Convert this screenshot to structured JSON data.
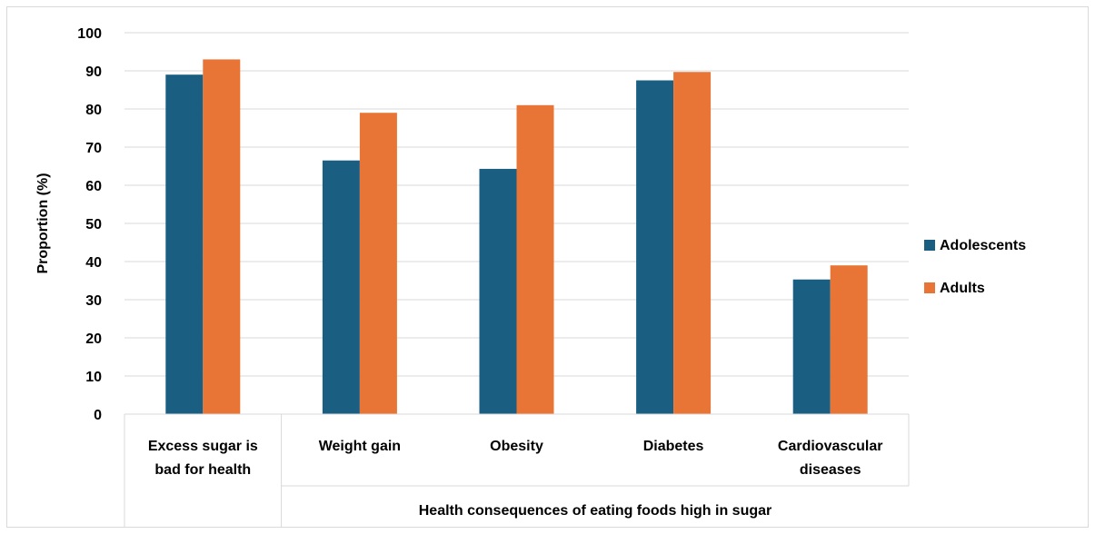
{
  "chart_data": {
    "type": "bar",
    "title": "",
    "ylabel": "Proportion (%)",
    "xlabel": "Health consequences of eating foods high in sugar",
    "ylim": [
      0,
      100
    ],
    "yticks": [
      0,
      10,
      20,
      30,
      40,
      50,
      60,
      70,
      80,
      90,
      100
    ],
    "grid": true,
    "legend_position": "right",
    "categories": [
      [
        "Excess sugar is",
        "bad for health"
      ],
      [
        "Weight gain"
      ],
      [
        "Obesity"
      ],
      [
        "Diabetes"
      ],
      [
        "Cardiovascular",
        "diseases"
      ]
    ],
    "series": [
      {
        "name": "Adolescents",
        "color": "#1a5e82",
        "values": [
          89,
          66.5,
          64.3,
          87.5,
          35.3
        ]
      },
      {
        "name": "Adults",
        "color": "#e87535",
        "values": [
          93,
          79,
          81,
          89.7,
          39
        ]
      }
    ]
  }
}
